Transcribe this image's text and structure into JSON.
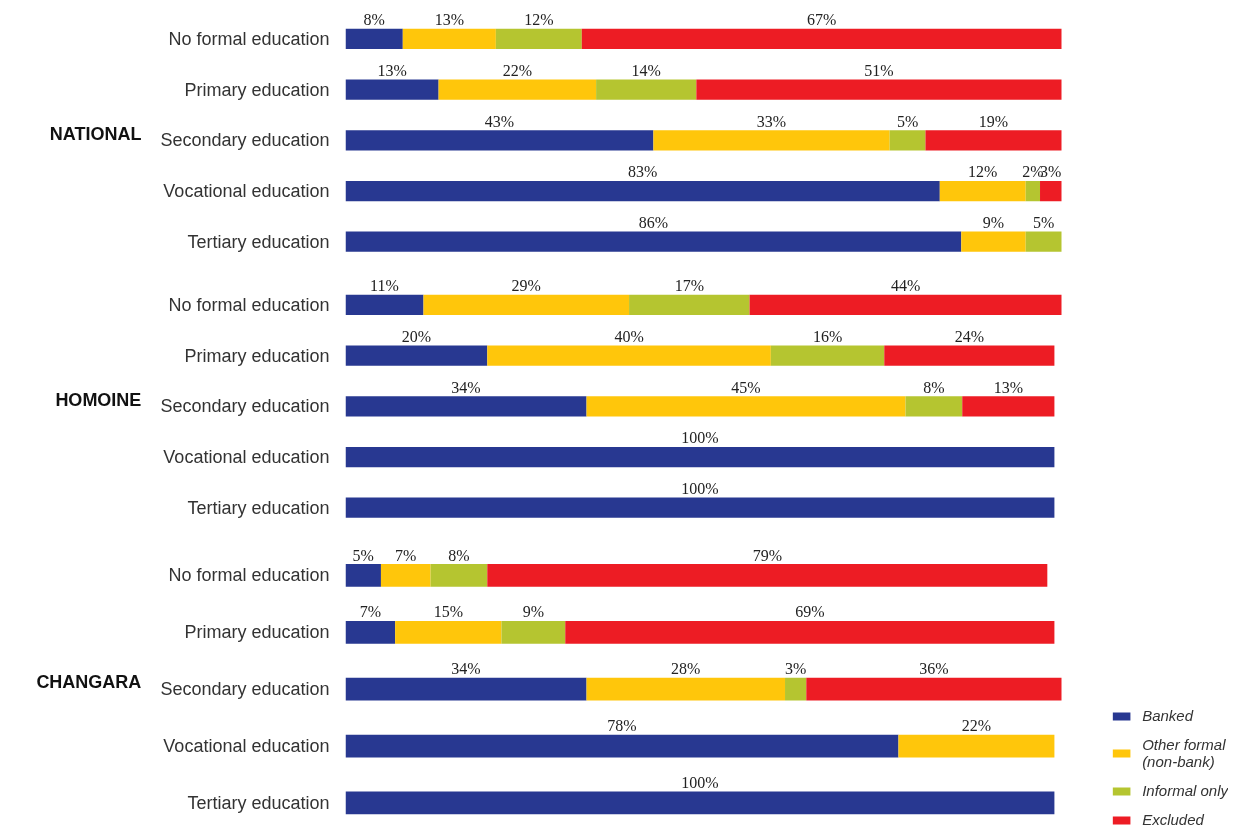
{
  "chart_data": [
    {
      "type": "bar",
      "orientation": "horizontal",
      "stacked": true,
      "title": "NATIONAL",
      "categories": [
        "No formal education",
        "Primary education",
        "Secondary education",
        "Vocational education",
        "Tertiary education"
      ],
      "tick_labels": "y",
      "series": [
        {
          "color": "#283891",
          "values": [
            8,
            13,
            43,
            83,
            86
          ],
          "value_labels": [
            "8%",
            "13%",
            "43%",
            "83%",
            "86%"
          ]
        },
        {
          "color": "#ffc60b",
          "values": [
            13,
            22,
            33,
            12,
            9
          ],
          "value_labels": [
            "13%",
            "22%",
            "33%",
            "12%",
            "9%"
          ]
        },
        {
          "color": "#b5c530",
          "values": [
            12,
            14,
            5,
            2,
            5
          ],
          "value_labels": [
            "12%",
            "14%",
            "5%",
            "2%",
            "5%"
          ]
        },
        {
          "color": "#ed1c24",
          "values": [
            67,
            51,
            19,
            3,
            null
          ],
          "value_labels": [
            "67%",
            "51%",
            "19%",
            "3%",
            null
          ]
        }
      ]
    },
    {
      "type": "bar",
      "orientation": "horizontal",
      "stacked": true,
      "title": "HOMOINE",
      "categories": [
        "No formal education",
        "Primary education",
        "Secondary education",
        "Vocational education",
        "Tertiary education"
      ],
      "tick_labels": "y",
      "series": [
        {
          "color": "#283891",
          "values": [
            11,
            20,
            34,
            100,
            100
          ],
          "value_labels": [
            "11%",
            "20%",
            "34%",
            "100%",
            "100%"
          ]
        },
        {
          "color": "#ffc60b",
          "values": [
            29,
            40,
            45,
            null,
            null
          ],
          "value_labels": [
            "29%",
            "40%",
            "45%",
            null,
            null
          ]
        },
        {
          "color": "#b5c530",
          "values": [
            17,
            16,
            8,
            null,
            null
          ],
          "value_labels": [
            "17%",
            "16%",
            "8%",
            null,
            null
          ]
        },
        {
          "color": "#ed1c24",
          "values": [
            44,
            24,
            13,
            null,
            null
          ],
          "value_labels": [
            "44%",
            "24%",
            "13%",
            null,
            null
          ]
        }
      ]
    },
    {
      "type": "bar",
      "orientation": "horizontal",
      "stacked": true,
      "title": "CHANGARA",
      "categories": [
        "No formal education",
        "Primary education",
        "Secondary education",
        "Vocational education",
        "Tertiary education"
      ],
      "tick_labels": "y",
      "legend": "bottom right",
      "series": [
        {
          "name": "Banked",
          "color": "#283891",
          "values": [
            5,
            7,
            34,
            78,
            100
          ],
          "value_labels": [
            "5%",
            "7%",
            "34%",
            "78%",
            "100%"
          ]
        },
        {
          "name": "Other formal\n(non-bank)",
          "color": "#ffc60b",
          "values": [
            7,
            15,
            28,
            22,
            null
          ],
          "value_labels": [
            "7%",
            "15%",
            "28%",
            "22%",
            null
          ]
        },
        {
          "name": "Informal only",
          "color": "#b5c530",
          "values": [
            8,
            9,
            3,
            null,
            null
          ],
          "value_labels": [
            "8%",
            "9%",
            "3%",
            null,
            null
          ]
        },
        {
          "name": "Excluded",
          "color": "#ed1c24",
          "values": [
            79,
            69,
            36,
            null,
            null
          ],
          "value_labels": [
            "79%",
            "69%",
            "36%",
            null,
            null
          ]
        }
      ]
    }
  ]
}
